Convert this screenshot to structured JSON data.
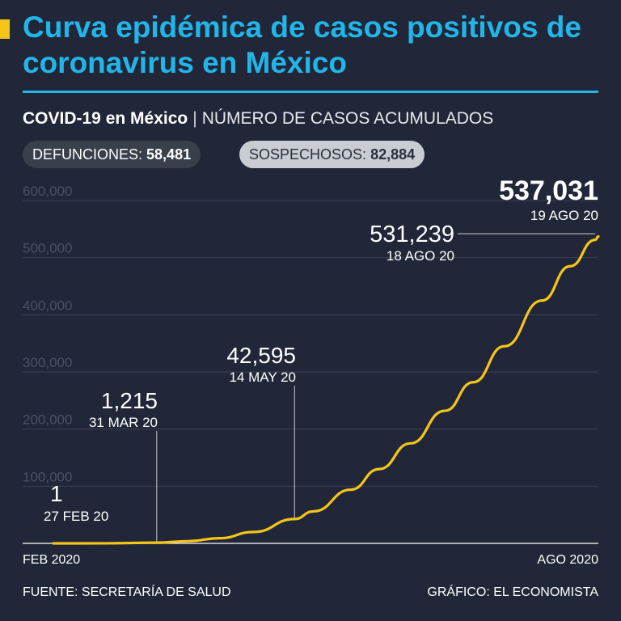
{
  "header": {
    "title": "Curva epidémica de casos positivos de coronavirus en México",
    "subtitle_bold": "COVID-19 en México",
    "subtitle_sep": "|",
    "subtitle_rest": "NÚMERO DE CASOS ACUMULADOS"
  },
  "badges": {
    "deaths_label": "DEFUNCIONES:",
    "deaths_value": "58,481",
    "suspects_label": "SOSPECHOSOS:",
    "suspects_value": "82,884"
  },
  "chart_data": {
    "type": "line",
    "title": "COVID-19 en México",
    "ylabel": "NÚMERO DE CASOS ACUMULADOS",
    "ylim": [
      0,
      600000
    ],
    "yticks": [
      100000,
      200000,
      300000,
      400000,
      500000,
      600000
    ],
    "ytick_labels": [
      "100,000",
      "200,000",
      "300,000",
      "400,000",
      "500,000",
      "600,000"
    ],
    "xlim": [
      "2020-02-27",
      "2020-08-19"
    ],
    "x_axis_labels": [
      "FEB 2020",
      "AGO 2020"
    ],
    "grid": true,
    "line_color": "#f5c518",
    "series": [
      {
        "x": [
          "2020-02-27",
          "2020-03-15",
          "2020-03-31",
          "2020-04-10",
          "2020-04-20",
          "2020-05-01",
          "2020-05-14",
          "2020-05-20",
          "2020-06-01",
          "2020-06-10",
          "2020-06-20",
          "2020-07-01",
          "2020-07-10",
          "2020-07-20",
          "2020-08-01",
          "2020-08-10",
          "2020-08-18",
          "2020-08-19"
        ],
        "y": [
          1,
          100,
          1215,
          3800,
          9000,
          20000,
          42595,
          56000,
          94000,
          130000,
          175000,
          232000,
          282000,
          345000,
          425000,
          485000,
          531239,
          537031
        ]
      }
    ],
    "annotations": [
      {
        "value": "1",
        "date_label": "27 FEB 20",
        "x": "2020-02-27",
        "y": 1
      },
      {
        "value": "1,215",
        "date_label": "31 MAR 20",
        "x": "2020-03-31",
        "y": 1215
      },
      {
        "value": "42,595",
        "date_label": "14 MAY 20",
        "x": "2020-05-14",
        "y": 42595
      },
      {
        "value": "531,239",
        "date_label": "18 AGO 20",
        "x": "2020-08-18",
        "y": 531239
      },
      {
        "value": "537,031",
        "date_label": "19 AGO 20",
        "x": "2020-08-19",
        "y": 537031
      }
    ]
  },
  "footer": {
    "source": "FUENTE: SECRETARÍA DE SALUD",
    "credit": "GRÁFICO: EL ECONOMISTA"
  }
}
